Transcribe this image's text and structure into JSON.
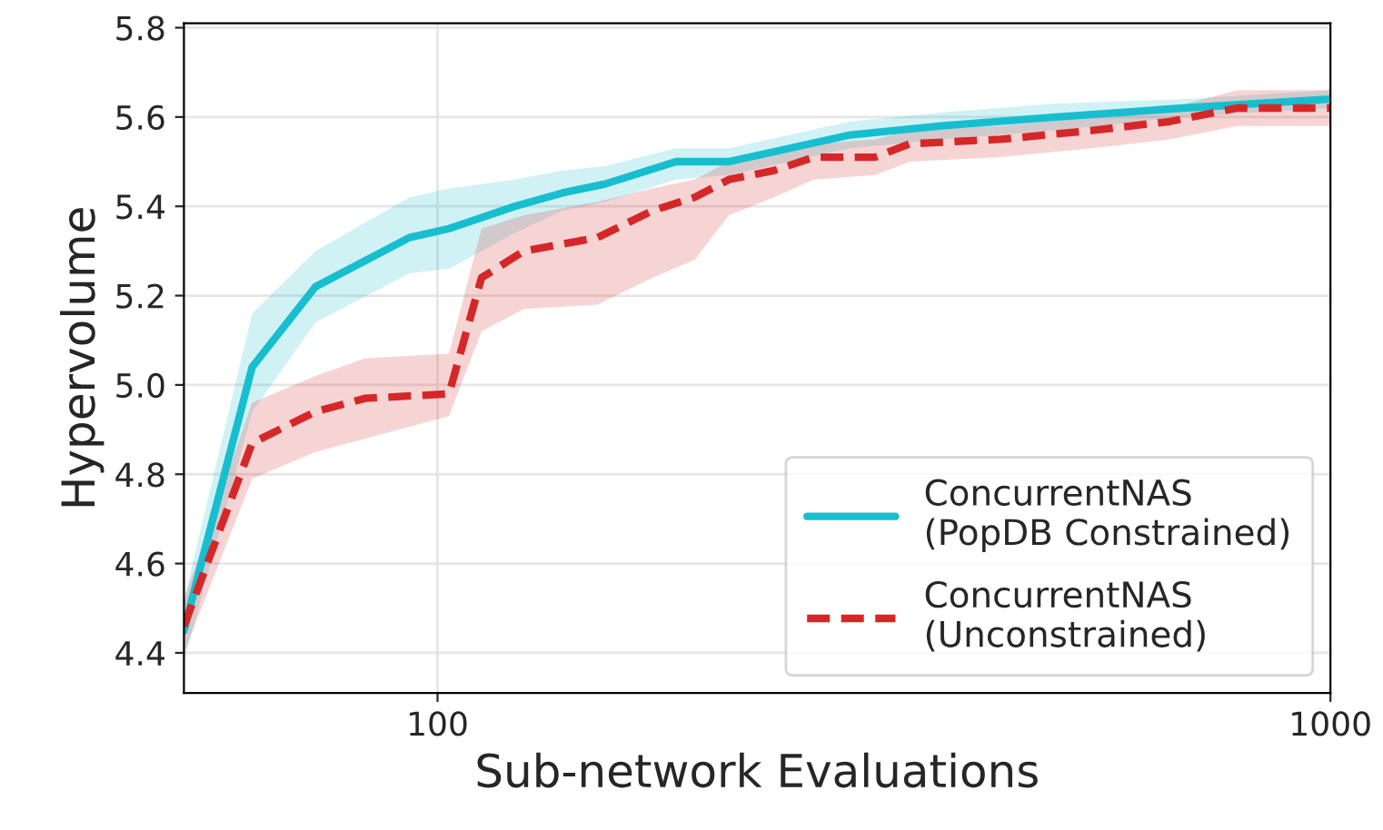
{
  "chart_data": {
    "type": "line",
    "xlabel": "Sub-network Evaluations",
    "ylabel": "Hypervolume",
    "log": "x",
    "xlim": [
      52,
      1000
    ],
    "xticks": [
      100,
      1000
    ],
    "ylim": [
      4.31,
      5.81
    ],
    "yticks": [
      4.4,
      4.6,
      4.8,
      {
        "value": 5.0,
        "label": "5.0"
      },
      5.2,
      5.4,
      5.6,
      5.8
    ],
    "grid": true,
    "legend": "bottom right",
    "marker": "none",
    "series": [
      {
        "name": "ConcurrentNAS\n(PopDB Constrained)",
        "color": "#17becf",
        "line_style": "solid",
        "x": [
          52,
          62,
          73,
          93,
          103,
          122,
          138,
          154,
          185,
          212,
          248,
          290,
          366,
          493,
          683,
          1000
        ],
        "values": [
          4.45,
          5.04,
          5.22,
          5.33,
          5.35,
          5.4,
          5.43,
          5.45,
          5.5,
          5.5,
          5.53,
          5.56,
          5.58,
          5.6,
          5.62,
          5.64
        ],
        "lower": [
          4.38,
          4.94,
          5.14,
          5.25,
          5.26,
          5.34,
          5.39,
          5.41,
          5.46,
          5.47,
          5.5,
          5.53,
          5.55,
          5.57,
          5.6,
          5.62
        ],
        "upper": [
          4.52,
          5.16,
          5.3,
          5.42,
          5.44,
          5.46,
          5.48,
          5.49,
          5.53,
          5.53,
          5.56,
          5.59,
          5.61,
          5.63,
          5.64,
          5.66
        ]
      },
      {
        "name": "ConcurrentNAS\n(Unconstrained)",
        "color": "#d62728",
        "line_style": "dashed",
        "x": [
          52,
          62,
          73,
          83,
          103,
          112,
          125,
          151,
          174,
          194,
          212,
          238,
          264,
          309,
          338,
          427,
          541,
          661,
          786,
          1000
        ],
        "values": [
          4.46,
          4.87,
          4.94,
          4.97,
          4.98,
          5.24,
          5.3,
          5.33,
          5.39,
          5.42,
          5.46,
          5.48,
          5.51,
          5.51,
          5.54,
          5.55,
          5.57,
          5.59,
          5.62,
          5.62
        ],
        "lower": [
          4.4,
          4.79,
          4.85,
          4.88,
          4.93,
          5.12,
          5.17,
          5.18,
          5.24,
          5.28,
          5.38,
          5.42,
          5.46,
          5.47,
          5.5,
          5.51,
          5.53,
          5.55,
          5.58,
          5.58
        ],
        "upper": [
          4.52,
          4.96,
          5.02,
          5.06,
          5.07,
          5.35,
          5.38,
          5.41,
          5.44,
          5.46,
          5.5,
          5.52,
          5.54,
          5.55,
          5.57,
          5.58,
          5.6,
          5.62,
          5.66,
          5.66
        ]
      }
    ]
  }
}
